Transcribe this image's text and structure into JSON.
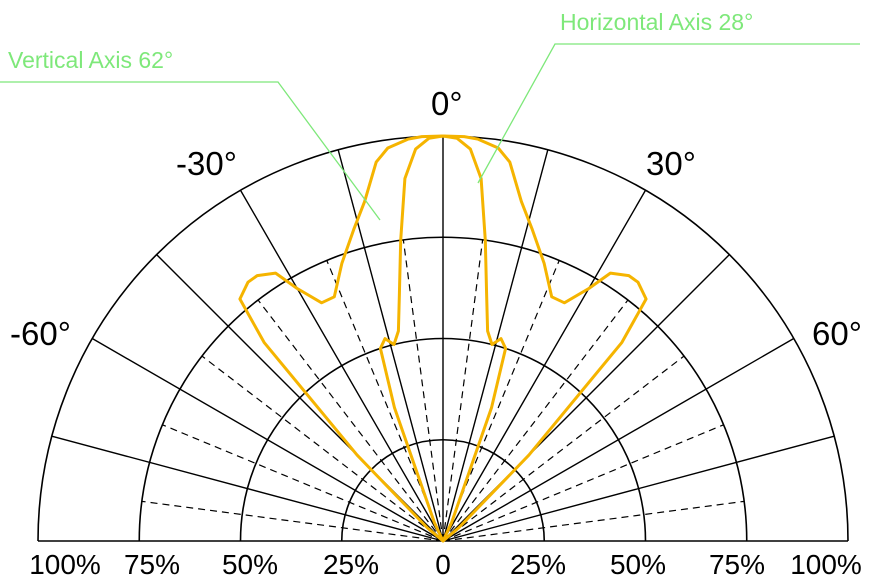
{
  "chart_data": {
    "type": "polar",
    "range": "half",
    "radial_tick_labels": [
      "100%",
      "75%",
      "50%",
      "25%",
      "0",
      "25%",
      "50%",
      "75%",
      "100%"
    ],
    "angle_labels": [
      "-60°",
      "-30°",
      "0°",
      "30°",
      "60°"
    ],
    "angle_values_deg": [
      -60,
      -30,
      0,
      30,
      60
    ],
    "solid_spoke_angles_deg": [
      -75,
      -60,
      -45,
      -30,
      -15,
      0,
      15,
      30,
      45,
      60,
      75
    ],
    "dashed_spoke_angles_deg": [
      -82.5,
      -67.5,
      -52.5,
      -37.5,
      -22.5,
      -7.5,
      7.5,
      22.5,
      37.5,
      52.5,
      67.5,
      82.5
    ],
    "ring_levels": [
      0.25,
      0.5,
      0.75,
      1.0
    ],
    "annotations": [
      "Vertical Axis 62°",
      "Horizontal Axis 28°"
    ],
    "series": [
      {
        "name": "Vertical Axis 62°",
        "color": "#f5b400",
        "angles_deg": [
          -90,
          -50,
          -45,
          -42,
          -40,
          -37,
          -35,
          -32,
          -30,
          -27,
          -24,
          -20,
          -16,
          -13,
          -10,
          -8,
          -5,
          -3,
          0,
          3,
          5,
          8,
          10,
          13,
          16,
          20,
          24,
          27,
          30,
          32,
          35,
          37,
          40,
          42,
          45,
          50,
          90
        ],
        "values": [
          0,
          0.05,
          0.3,
          0.66,
          0.78,
          0.8,
          0.8,
          0.78,
          0.72,
          0.66,
          0.66,
          0.73,
          0.8,
          0.86,
          0.95,
          0.98,
          0.996,
          1.0,
          1.0,
          1.0,
          0.996,
          0.98,
          0.95,
          0.86,
          0.8,
          0.73,
          0.66,
          0.66,
          0.72,
          0.78,
          0.8,
          0.8,
          0.78,
          0.66,
          0.3,
          0.05,
          0
        ]
      },
      {
        "name": "Horizontal Axis 28°",
        "color": "#f5b400",
        "angles_deg": [
          -90,
          -25,
          -20,
          -18,
          -16,
          -14,
          -12,
          -10,
          -8,
          -6,
          -4,
          -2,
          0,
          2,
          4,
          6,
          8,
          10,
          12,
          14,
          16,
          18,
          20,
          25,
          90
        ],
        "values": [
          0,
          0.05,
          0.35,
          0.5,
          0.52,
          0.5,
          0.53,
          0.62,
          0.75,
          0.9,
          0.97,
          0.995,
          1.0,
          0.995,
          0.97,
          0.9,
          0.75,
          0.62,
          0.53,
          0.5,
          0.52,
          0.5,
          0.35,
          0.05,
          0
        ]
      }
    ]
  }
}
